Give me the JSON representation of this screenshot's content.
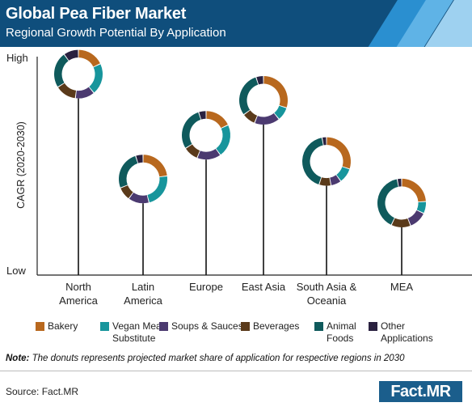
{
  "header": {
    "title": "Global Pea Fiber Market",
    "subtitle": "Regional Growth Potential By Application"
  },
  "colors": {
    "header_bg": "#0f4e7c",
    "stripe_1": "#2a8fd0",
    "stripe_2": "#5fb3e6",
    "stripe_3": "#9ed1f0"
  },
  "chart_data": {
    "type": "donut-bubble",
    "ylabel": "CAGR (2020-2030)",
    "y_high_label": "High",
    "y_low_label": "Low",
    "categories": [
      "Bakery",
      "Vegan Meat Substitute",
      "Soups & Sauces",
      "Beverages",
      "Animal Foods",
      "Other Applications"
    ],
    "category_colors": [
      "#b8681e",
      "#17959c",
      "#4b3a70",
      "#5a3a1a",
      "#0f5a5c",
      "#2a2140"
    ],
    "regions": [
      {
        "name": "North America",
        "label_lines": [
          "North",
          "America"
        ],
        "cagr_level": 0.92,
        "shares": [
          18,
          21,
          13,
          14,
          24,
          10
        ]
      },
      {
        "name": "Latin America",
        "label_lines": [
          "Latin",
          "America"
        ],
        "cagr_level": 0.44,
        "shares": [
          23,
          23,
          14,
          9,
          26,
          5
        ]
      },
      {
        "name": "Europe",
        "label_lines": [
          "Europe"
        ],
        "cagr_level": 0.64,
        "shares": [
          18,
          22,
          16,
          10,
          29,
          5
        ]
      },
      {
        "name": "East Asia",
        "label_lines": [
          "East Asia"
        ],
        "cagr_level": 0.8,
        "shares": [
          30,
          9,
          17,
          9,
          30,
          5
        ]
      },
      {
        "name": "South Asia & Oceania",
        "label_lines": [
          "South Asia &",
          "Oceania"
        ],
        "cagr_level": 0.52,
        "shares": [
          30,
          10,
          7,
          8,
          42,
          3
        ]
      },
      {
        "name": "MEA",
        "label_lines": [
          "MEA"
        ],
        "cagr_level": 0.33,
        "shares": [
          24,
          8,
          12,
          13,
          40,
          3
        ]
      }
    ]
  },
  "legend": [
    {
      "lines": [
        "Bakery"
      ]
    },
    {
      "lines": [
        "Vegan Meat",
        "Substitute"
      ]
    },
    {
      "lines": [
        "Soups & Sauces"
      ]
    },
    {
      "lines": [
        "Beverages"
      ]
    },
    {
      "lines": [
        "Animal",
        "Foods"
      ]
    },
    {
      "lines": [
        "Other",
        "Applications"
      ]
    }
  ],
  "note": {
    "label": "Note:",
    "text": "The donuts represents projected market share of application for respective regions in 2030"
  },
  "footer": {
    "source": "Source: Fact.MR",
    "brand": "Fact.MR"
  }
}
